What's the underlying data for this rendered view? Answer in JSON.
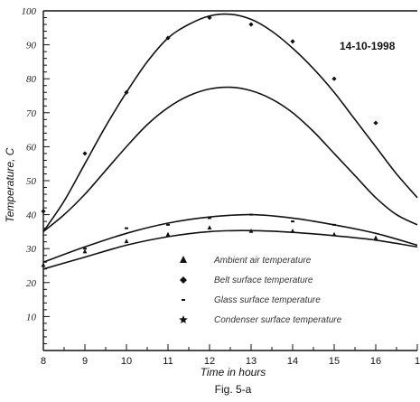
{
  "chart_data": {
    "type": "line",
    "title": "",
    "annotation": "14-10-1998",
    "caption": "Fig. 5-a",
    "xlabel": "Time in hours",
    "ylabel": "Temperature, C",
    "xlim": [
      8,
      17
    ],
    "ylim": [
      0,
      100
    ],
    "x_ticks": [
      "8",
      "9",
      "10",
      "11",
      "12",
      "13",
      "14",
      "15",
      "16",
      "1"
    ],
    "y_ticks": [
      "10",
      "20",
      "30",
      "40",
      "50",
      "60",
      "70",
      "80",
      "90",
      "100"
    ],
    "y_tick_values": [
      10,
      20,
      30,
      40,
      50,
      60,
      70,
      80,
      90,
      100
    ],
    "grid": false,
    "legend_position": "bottom-center",
    "series": [
      {
        "name": "Ambient air temperature",
        "marker": "triangle",
        "points": [
          {
            "x": 8,
            "y": 25
          },
          {
            "x": 9,
            "y": 29
          },
          {
            "x": 10,
            "y": 32
          },
          {
            "x": 11,
            "y": 34
          },
          {
            "x": 12,
            "y": 36
          },
          {
            "x": 13,
            "y": 35
          },
          {
            "x": 14,
            "y": 35
          },
          {
            "x": 15,
            "y": 34
          },
          {
            "x": 16,
            "y": 33
          }
        ],
        "curve": [
          {
            "x": 8,
            "y": 24
          },
          {
            "x": 9,
            "y": 27.5
          },
          {
            "x": 10,
            "y": 31
          },
          {
            "x": 11,
            "y": 33.5
          },
          {
            "x": 12,
            "y": 35
          },
          {
            "x": 13,
            "y": 35.3
          },
          {
            "x": 14,
            "y": 34.8
          },
          {
            "x": 15,
            "y": 33.8
          },
          {
            "x": 16,
            "y": 32.5
          },
          {
            "x": 17,
            "y": 30.5
          }
        ]
      },
      {
        "name": "Belt surface temperature",
        "marker": "diamond",
        "points": [
          {
            "x": 8,
            "y": 41
          },
          {
            "x": 9,
            "y": 58
          },
          {
            "x": 10,
            "y": 76
          },
          {
            "x": 11,
            "y": 92
          },
          {
            "x": 12,
            "y": 98
          },
          {
            "x": 13,
            "y": 96
          },
          {
            "x": 14,
            "y": 91
          },
          {
            "x": 15,
            "y": 80
          },
          {
            "x": 16,
            "y": 67
          }
        ],
        "curve": [
          {
            "x": 8,
            "y": 35
          },
          {
            "x": 8.5,
            "y": 44
          },
          {
            "x": 9,
            "y": 55
          },
          {
            "x": 9.5,
            "y": 66
          },
          {
            "x": 10,
            "y": 76
          },
          {
            "x": 10.5,
            "y": 85
          },
          {
            "x": 11,
            "y": 92
          },
          {
            "x": 11.5,
            "y": 96
          },
          {
            "x": 12,
            "y": 98.5
          },
          {
            "x": 12.5,
            "y": 99
          },
          {
            "x": 13,
            "y": 97.5
          },
          {
            "x": 13.5,
            "y": 94
          },
          {
            "x": 14,
            "y": 89
          },
          {
            "x": 14.5,
            "y": 83
          },
          {
            "x": 15,
            "y": 76
          },
          {
            "x": 15.5,
            "y": 68
          },
          {
            "x": 16,
            "y": 60
          },
          {
            "x": 16.5,
            "y": 52
          },
          {
            "x": 17,
            "y": 45
          }
        ]
      },
      {
        "name": "Glass surface temperature",
        "marker": "dash",
        "points": [
          {
            "x": 9,
            "y": 30
          },
          {
            "x": 10,
            "y": 36
          },
          {
            "x": 11,
            "y": 37
          },
          {
            "x": 12,
            "y": 39
          },
          {
            "x": 13,
            "y": 40
          },
          {
            "x": 14,
            "y": 38
          },
          {
            "x": 15,
            "y": 37
          }
        ],
        "curve": [
          {
            "x": 8,
            "y": 26
          },
          {
            "x": 9,
            "y": 30.5
          },
          {
            "x": 10,
            "y": 34.5
          },
          {
            "x": 11,
            "y": 37.5
          },
          {
            "x": 12,
            "y": 39.3
          },
          {
            "x": 13,
            "y": 40
          },
          {
            "x": 14,
            "y": 39
          },
          {
            "x": 15,
            "y": 37
          },
          {
            "x": 16,
            "y": 34.5
          },
          {
            "x": 17,
            "y": 31
          }
        ]
      },
      {
        "name": "Condenser surface temperature",
        "marker": "star",
        "points": [],
        "curve": [
          {
            "x": 8,
            "y": 35
          },
          {
            "x": 8.5,
            "y": 40
          },
          {
            "x": 9,
            "y": 46
          },
          {
            "x": 9.5,
            "y": 53
          },
          {
            "x": 10,
            "y": 60
          },
          {
            "x": 10.5,
            "y": 66.5
          },
          {
            "x": 11,
            "y": 71.5
          },
          {
            "x": 11.5,
            "y": 75
          },
          {
            "x": 12,
            "y": 77
          },
          {
            "x": 12.5,
            "y": 77.5
          },
          {
            "x": 13,
            "y": 76.5
          },
          {
            "x": 13.5,
            "y": 74
          },
          {
            "x": 14,
            "y": 70
          },
          {
            "x": 14.5,
            "y": 64.5
          },
          {
            "x": 15,
            "y": 58
          },
          {
            "x": 15.5,
            "y": 51.5
          },
          {
            "x": 16,
            "y": 45
          },
          {
            "x": 16.5,
            "y": 40
          },
          {
            "x": 17,
            "y": 37
          }
        ]
      }
    ]
  }
}
